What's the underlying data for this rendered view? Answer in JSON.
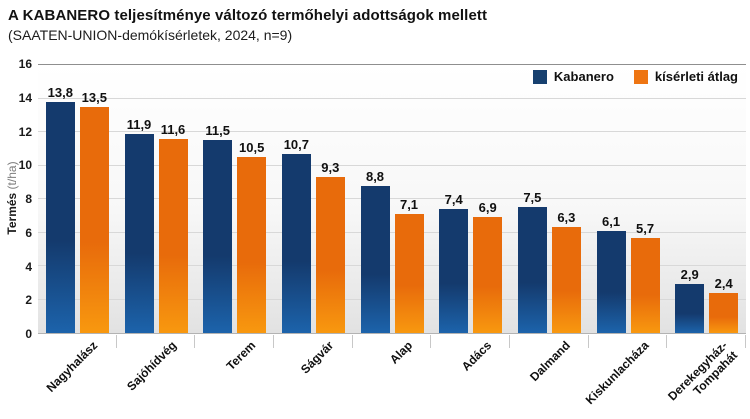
{
  "title": "A KABANERO teljesítménye változó termőhelyi adottságok mellett",
  "subtitle": "(SAATEN-UNION-demókísérletek, 2024, n=9)",
  "chart_data": {
    "type": "bar",
    "categories": [
      "Nagyhalász",
      "Sajóhídvég",
      "Terem",
      "Ságvár",
      "Alap",
      "Adács",
      "Dalmand",
      "Kiskunlacháza",
      "Derekegyház-\nTompahát"
    ],
    "series": [
      {
        "name": "Kabanero",
        "color": "#17406f",
        "gradient_top": "#143a6d",
        "gradient_bottom": "#1c63ab",
        "values": [
          13.8,
          11.9,
          11.5,
          10.7,
          8.8,
          7.4,
          7.5,
          6.1,
          2.9
        ]
      },
      {
        "name": "kísérleti átlag",
        "color": "#ee7512",
        "gradient_top": "#e86b0b",
        "gradient_bottom": "#f8980f",
        "values": [
          13.5,
          11.6,
          10.5,
          9.3,
          7.1,
          6.9,
          6.3,
          5.7,
          2.4
        ]
      }
    ],
    "ylabel_bold": "Termés",
    "ylabel_unit": "(t/ha)",
    "ylim": [
      0,
      16
    ],
    "ytick_step": 2,
    "grid": true,
    "legend_position": "top-right",
    "decimal_separator": ","
  }
}
